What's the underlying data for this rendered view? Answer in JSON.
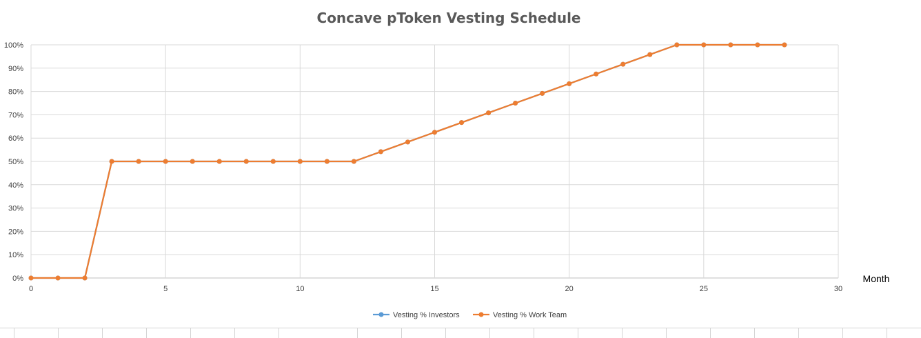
{
  "chart_data": {
    "type": "line",
    "title": "Concave pToken Vesting Schedule",
    "xlabel": "Month",
    "ylabel": "",
    "xlim": [
      0,
      30
    ],
    "ylim": [
      0,
      100
    ],
    "x_ticks": [
      0,
      5,
      10,
      15,
      20,
      25,
      30
    ],
    "y_ticks": [
      "0%",
      "10%",
      "20%",
      "30%",
      "40%",
      "50%",
      "60%",
      "70%",
      "80%",
      "90%",
      "100%"
    ],
    "grid": true,
    "legend_position": "bottom",
    "x": [
      0,
      1,
      2,
      3,
      4,
      5,
      6,
      7,
      8,
      9,
      10,
      11,
      12,
      13,
      14,
      15,
      16,
      17,
      18,
      19,
      20,
      21,
      22,
      23,
      24,
      25,
      26,
      27,
      28
    ],
    "series": [
      {
        "name": "Vesting % Investors",
        "color": "#5B9BD5",
        "values": [
          0,
          0,
          0,
          50,
          50,
          50,
          50,
          50,
          50,
          50,
          50,
          50,
          50,
          54.17,
          58.33,
          62.5,
          66.67,
          70.83,
          75,
          79.17,
          83.33,
          87.5,
          91.67,
          95.83,
          100,
          100,
          100,
          100,
          100
        ]
      },
      {
        "name": "Vesting % Work Team",
        "color": "#ED7D31",
        "values": [
          0,
          0,
          0,
          50,
          50,
          50,
          50,
          50,
          50,
          50,
          50,
          50,
          50,
          54.17,
          58.33,
          62.5,
          66.67,
          70.83,
          75,
          79.17,
          83.33,
          87.5,
          91.67,
          95.83,
          100,
          100,
          100,
          100,
          100
        ]
      }
    ]
  }
}
